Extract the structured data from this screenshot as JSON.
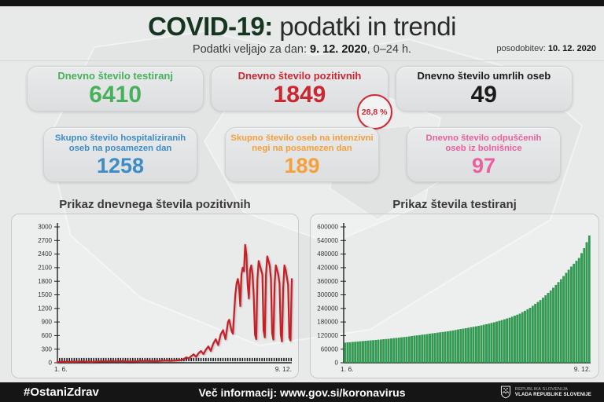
{
  "page": {
    "title_strong": "COVID-19:",
    "title_rest": " podatki in trendi",
    "subtitle_prefix": "Podatki veljajo za dan: ",
    "subtitle_date": "9. 12. 2020",
    "subtitle_suffix": ", 0–24 h.",
    "update_label": "posodobitev: ",
    "update_date": "10. 12. 2020"
  },
  "colors": {
    "title_accent": "#16351f",
    "background": "#e8e9e9",
    "footer_bg": "#151515",
    "green": "#47b159",
    "red": "#cc2630",
    "black": "#1b1b1b",
    "blue": "#3c8cc8",
    "orange": "#f5a03a",
    "pink": "#ec5f9f"
  },
  "cards": [
    {
      "label": "Dnevno število testiranj",
      "value": "6410",
      "color": "#47b159"
    },
    {
      "label": "Dnevno število pozitivnih",
      "value": "1849",
      "color": "#cc2630",
      "badge": "28,8 %"
    },
    {
      "label": "Dnevno število umrlih oseb",
      "value": "49",
      "color": "#1b1b1b"
    },
    {
      "label_line1": "Skupno število hospitaliziranih",
      "label_line2": "oseb na posamezen dan",
      "value": "1258",
      "color": "#3c8cc8"
    },
    {
      "label_line1": "Skupno število oseb na intenzivni",
      "label_line2": "negi na posamezen dan",
      "value": "189",
      "color": "#f5a03a"
    },
    {
      "label_line1": "Dnevno število odpuščenih",
      "label_line2": "oseb iz bolnišnice",
      "value": "97",
      "color": "#ec5f9f"
    }
  ],
  "chart_data": [
    {
      "type": "line",
      "title": "Prikaz dnevnega števila pozitivnih",
      "xlabel": "",
      "ylabel": "",
      "x_range": [
        0,
        191
      ],
      "x_tick_labels": [
        "1. 6.",
        "9. 12."
      ],
      "ylim": [
        0,
        3000
      ],
      "y_ticks": [
        0,
        300,
        600,
        900,
        1200,
        1500,
        1800,
        2100,
        2400,
        2700,
        3000
      ],
      "grid": false,
      "legend": "none",
      "series_color": "#c81f27",
      "baseline_dashes": true,
      "points": [
        [
          0,
          15
        ],
        [
          4,
          22
        ],
        [
          8,
          18
        ],
        [
          12,
          25
        ],
        [
          16,
          20
        ],
        [
          20,
          28
        ],
        [
          24,
          22
        ],
        [
          28,
          18
        ],
        [
          32,
          26
        ],
        [
          36,
          32
        ],
        [
          40,
          28
        ],
        [
          44,
          35
        ],
        [
          48,
          30
        ],
        [
          52,
          36
        ],
        [
          56,
          30
        ],
        [
          60,
          26
        ],
        [
          64,
          32
        ],
        [
          68,
          38
        ],
        [
          72,
          42
        ],
        [
          76,
          36
        ],
        [
          80,
          32
        ],
        [
          84,
          42
        ],
        [
          88,
          46
        ],
        [
          92,
          42
        ],
        [
          96,
          48
        ],
        [
          100,
          55
        ],
        [
          103,
          80
        ],
        [
          105,
          120
        ],
        [
          107,
          95
        ],
        [
          109,
          145
        ],
        [
          111,
          185
        ],
        [
          113,
          130
        ],
        [
          115,
          210
        ],
        [
          117,
          260
        ],
        [
          119,
          190
        ],
        [
          121,
          290
        ],
        [
          123,
          360
        ],
        [
          125,
          260
        ],
        [
          127,
          420
        ],
        [
          129,
          520
        ],
        [
          131,
          390
        ],
        [
          133,
          620
        ],
        [
          135,
          720
        ],
        [
          137,
          520
        ],
        [
          139,
          900
        ],
        [
          140,
          950
        ],
        [
          141,
          820
        ],
        [
          142,
          700
        ],
        [
          143,
          640
        ],
        [
          144,
          1100
        ],
        [
          145,
          1500
        ],
        [
          146,
          1750
        ],
        [
          147,
          1850
        ],
        [
          148,
          1700
        ],
        [
          149,
          1250
        ],
        [
          150,
          1950
        ],
        [
          151,
          2100
        ],
        [
          152,
          2020
        ],
        [
          153,
          2605
        ],
        [
          154,
          2380
        ],
        [
          155,
          1750
        ],
        [
          156,
          1420
        ],
        [
          157,
          2050
        ],
        [
          158,
          2150
        ],
        [
          159,
          1950
        ],
        [
          160,
          1480
        ],
        [
          161,
          620
        ],
        [
          162,
          520
        ],
        [
          163,
          1850
        ],
        [
          164,
          2250
        ],
        [
          165,
          2150
        ],
        [
          166,
          2050
        ],
        [
          167,
          1950
        ],
        [
          168,
          720
        ],
        [
          169,
          560
        ],
        [
          170,
          1950
        ],
        [
          171,
          2350
        ],
        [
          172,
          2250
        ],
        [
          173,
          2150
        ],
        [
          174,
          1850
        ],
        [
          175,
          660
        ],
        [
          176,
          510
        ],
        [
          177,
          1750
        ],
        [
          178,
          2150
        ],
        [
          179,
          2050
        ],
        [
          180,
          1950
        ],
        [
          181,
          1750
        ],
        [
          182,
          620
        ],
        [
          183,
          470
        ],
        [
          184,
          1650
        ],
        [
          185,
          2150
        ],
        [
          186,
          2050
        ],
        [
          187,
          1880
        ],
        [
          188,
          1720
        ],
        [
          189,
          560
        ],
        [
          190,
          490
        ],
        [
          191,
          1849
        ]
      ]
    },
    {
      "type": "bar",
      "title": "Prikaz števila testiranj",
      "xlabel": "",
      "ylabel": "",
      "x_range": [
        0,
        191
      ],
      "x_tick_labels": [
        "1. 6.",
        "9. 12."
      ],
      "ylim": [
        0,
        600000
      ],
      "y_ticks": [
        0,
        60000,
        120000,
        180000,
        240000,
        300000,
        360000,
        420000,
        480000,
        540000,
        600000
      ],
      "grid": false,
      "legend": "none",
      "bar_color": "#2f9e50",
      "bar_edge_color": "#1f8040",
      "points": [
        [
          0,
          88000
        ],
        [
          8,
          92000
        ],
        [
          16,
          96000
        ],
        [
          24,
          100000
        ],
        [
          32,
          104000
        ],
        [
          40,
          109000
        ],
        [
          48,
          114000
        ],
        [
          56,
          120000
        ],
        [
          64,
          126000
        ],
        [
          72,
          132000
        ],
        [
          80,
          138000
        ],
        [
          88,
          146000
        ],
        [
          96,
          154000
        ],
        [
          104,
          162000
        ],
        [
          112,
          172000
        ],
        [
          120,
          184000
        ],
        [
          128,
          198000
        ],
        [
          136,
          216000
        ],
        [
          144,
          242000
        ],
        [
          152,
          276000
        ],
        [
          160,
          318000
        ],
        [
          168,
          368000
        ],
        [
          176,
          424000
        ],
        [
          182,
          462000
        ],
        [
          186,
          505000
        ],
        [
          189,
          545000
        ],
        [
          191,
          578000
        ]
      ]
    }
  ],
  "footer": {
    "hashtag": "#OstaniZdrav",
    "info": "Več informacij: www.gov.si/koronavirus",
    "gov_line1": "REPUBLIKA SLOVENIJA",
    "gov_line2": "VLADA REPUBLIKE SLOVENIJE"
  }
}
